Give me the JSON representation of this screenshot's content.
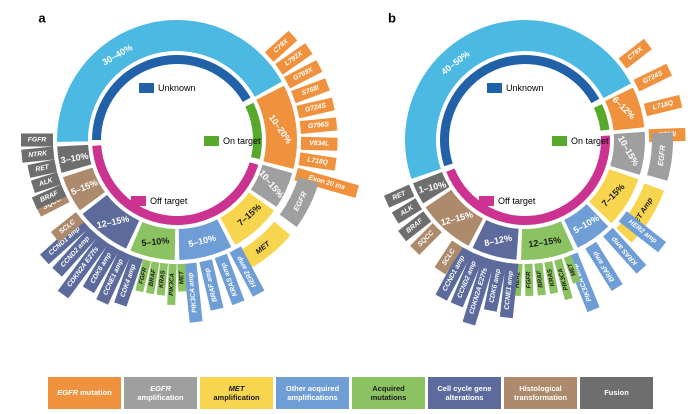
{
  "figure": {
    "panel_letters": [
      "a",
      "b"
    ]
  },
  "ring_legend": {
    "unknown": {
      "label": "Unknown",
      "color": "#2161a8"
    },
    "on": {
      "label": "On target",
      "color": "#57a82b"
    },
    "off": {
      "label": "Off target",
      "color": "#cc3390"
    }
  },
  "colors": {
    "unknown": "#4cb9e2",
    "egfr_mutation": "#f0913e",
    "egfr_amplification": "#9f9f9f",
    "met_amplification": "#f8d54e",
    "other_acquired_amplifications": "#6f9ed6",
    "acquired_mutations": "#8cc362",
    "cell_cycle": "#5c6b9c",
    "histological_transformation": "#ac8a6b",
    "fusion": "#6e6e6e"
  },
  "dark_text_categories": [
    "met_amplification",
    "acquired_mutations"
  ],
  "chart_data": {
    "type": "pie",
    "subtype": "double-donut-resistance-mechanisms",
    "panels": [
      {
        "letter": "a",
        "segments": [
          {
            "category": "unknown",
            "percent": "30–40%",
            "arc": [
              268,
              422
            ],
            "label_angle": 325,
            "label_rot": -30,
            "items": []
          },
          {
            "category": "egfr_mutation",
            "percent": "10–20%",
            "arc": [
              62,
              105
            ],
            "label_angle": 84,
            "label_rot": 55,
            "items": [
              "C79X",
              "L792X",
              "G769X",
              "S768I",
              "G724S",
              "G796S",
              "V834L",
              "L718Q",
              "Exon 20 ins"
            ],
            "fan": [
              48,
              106
            ]
          },
          {
            "category": "egfr_amplification",
            "percent": "10–15%",
            "arc": [
              105,
              125
            ],
            "label_angle": 115,
            "label_rot": 50,
            "band_label": "EGFR",
            "band_arc": [
              107,
              126
            ]
          },
          {
            "category": "met_amplification",
            "percent": "7–15%",
            "arc": [
              125,
              152
            ],
            "label_angle": 136,
            "label_rot": -42,
            "band_label": "MET",
            "band_arc": [
              130,
              153
            ]
          },
          {
            "category": "other_acquired_amplifications",
            "percent": "5–10%",
            "arc": [
              152,
              180
            ],
            "label_angle": 166,
            "label_rot": -14,
            "items": [
              "PIK3CA amp",
              "BRAF amp",
              "KRAS amp",
              "HER2 amp"
            ],
            "fan": [
              174,
              152
            ]
          },
          {
            "category": "acquired_mutations",
            "percent": "5–10%",
            "arc": [
              180,
              204
            ],
            "label_angle": 192,
            "label_rot": -6,
            "items": [
              "HER2",
              "FGFR",
              "BRAF",
              "KRAS",
              "PIK3CA",
              "MET"
            ],
            "fan": [
              198,
              178
            ]
          },
          {
            "category": "cell_cycle",
            "percent": "12–15%",
            "arc": [
              204,
              233
            ],
            "label_angle": 218,
            "label_rot": -12,
            "items": [
              "CCND1 amp",
              "CCND2 amp",
              "CDKN2A E27fs",
              "CDK6 amp",
              "CCNE1 amp",
              "CDK4 amp"
            ],
            "fan": [
              228,
              199
            ]
          },
          {
            "category": "histological_transformation",
            "percent": "5–15%",
            "arc": [
              233,
              253
            ],
            "label_angle": 243,
            "label_rot": -22,
            "items": [
              "SQCC",
              "SCLC"
            ],
            "fan": [
              243,
              231.5
            ]
          },
          {
            "category": "fusion",
            "percent": "3–10%",
            "arc": [
              253,
              268
            ],
            "label_angle": 260,
            "label_rot": -10,
            "items": [
              "FGFR",
              "NTRK",
              "RET",
              "ALK",
              "BRAF"
            ],
            "fan": [
              270,
              246
            ]
          }
        ],
        "inner_arcs": [
          {
            "id": "unknown",
            "arc": [
              270,
              420
            ]
          },
          {
            "id": "on",
            "arc": [
              64,
              103
            ]
          },
          {
            "id": "off",
            "arc": [
              107,
              266
            ]
          }
        ]
      },
      {
        "letter": "b",
        "segments": [
          {
            "category": "unknown",
            "percent": "40–50%",
            "arc": [
              250,
              423
            ],
            "label_angle": 318,
            "label_rot": -38,
            "items": []
          },
          {
            "category": "egfr_mutation",
            "percent": "6–12%",
            "arc": [
              63,
              85
            ],
            "label_angle": 72,
            "label_rot": 45,
            "items": [
              "C79X",
              "G724S",
              "L718Q",
              "S768I"
            ],
            "fan": [
              52,
              88
            ]
          },
          {
            "category": "egfr_amplification",
            "percent": "10–15%",
            "arc": [
              85,
              108
            ],
            "label_angle": 96,
            "label_rot": 60,
            "band_label": "EGFR",
            "band_arc": [
              87,
              106
            ]
          },
          {
            "category": "met_amplification",
            "percent": "7–15%",
            "arc": [
              108,
              135
            ],
            "label_angle": 122,
            "label_rot": -45,
            "band_label": "MET Amp",
            "band_arc": [
              110,
              134
            ]
          },
          {
            "category": "other_acquired_amplifications",
            "percent": "5–10%",
            "arc": [
              135,
              155
            ],
            "label_angle": 144,
            "label_rot": -30,
            "items": [
              "PIK3CA amp",
              "BRAF amp",
              "KRAS amp",
              "HER2 amp"
            ],
            "fan": [
              158,
              128
            ]
          },
          {
            "category": "acquired_mutations",
            "percent": "12–15%",
            "arc": [
              155,
              183
            ],
            "label_angle": 169,
            "label_rot": -8,
            "items": [
              "HER2",
              "FGFR",
              "BRAF",
              "KRAS",
              "PIK3CA",
              "MET"
            ],
            "fan": [
              183,
              160
            ]
          },
          {
            "category": "cell_cycle",
            "percent": "8–12%",
            "arc": [
              183,
              207
            ],
            "label_angle": 195,
            "label_rot": -12,
            "items": [
              "CCND1 amp",
              "CCND2 amp",
              "CDKN2A E27fs",
              "CDK6 amp",
              "CCNE1 amp"
            ],
            "fan": [
              208,
              186
            ]
          },
          {
            "category": "histological_transformation",
            "percent": "12–15%",
            "arc": [
              207,
              237
            ],
            "label_angle": 221,
            "label_rot": -15,
            "items": [
              "SQCC",
              "SCLC"
            ],
            "fan": [
              225,
              213
            ]
          },
          {
            "category": "fusion",
            "percent": "1–10%",
            "arc": [
              237,
              250
            ],
            "label_angle": 243,
            "label_rot": -12,
            "items": [
              "RET",
              "ALK",
              "BRAF"
            ],
            "fan": [
              246,
              232
            ]
          }
        ],
        "inner_arcs": [
          {
            "id": "unknown",
            "arc": [
              252,
              421
            ]
          },
          {
            "id": "on",
            "arc": [
              65,
              83
            ]
          },
          {
            "id": "off",
            "arc": [
              87,
              248
            ]
          }
        ]
      }
    ]
  },
  "category_legend": [
    {
      "id": "egfr_mutation",
      "parts": [
        {
          "t": "EGFR",
          "i": true
        },
        {
          "t": " mutation"
        }
      ]
    },
    {
      "id": "egfr_amplification",
      "parts": [
        {
          "t": "EGFR",
          "i": true
        },
        {
          "br": true
        },
        {
          "t": "amplification"
        }
      ]
    },
    {
      "id": "met_amplification",
      "parts": [
        {
          "t": "MET",
          "i": true
        },
        {
          "br": true
        },
        {
          "t": "amplification"
        }
      ]
    },
    {
      "id": "other_acquired_amplifications",
      "parts": [
        {
          "t": "Other acquired"
        },
        {
          "br": true
        },
        {
          "t": "amplifications"
        }
      ]
    },
    {
      "id": "acquired_mutations",
      "parts": [
        {
          "t": "Acquired"
        },
        {
          "br": true
        },
        {
          "t": "mutations"
        }
      ]
    },
    {
      "id": "cell_cycle",
      "parts": [
        {
          "t": "Cell cycle gene"
        },
        {
          "br": true
        },
        {
          "t": "alterations"
        }
      ]
    },
    {
      "id": "histological_transformation",
      "parts": [
        {
          "t": "Histological"
        },
        {
          "br": true
        },
        {
          "t": "transformation"
        }
      ]
    },
    {
      "id": "fusion",
      "parts": [
        {
          "t": "Fusion"
        }
      ]
    }
  ]
}
